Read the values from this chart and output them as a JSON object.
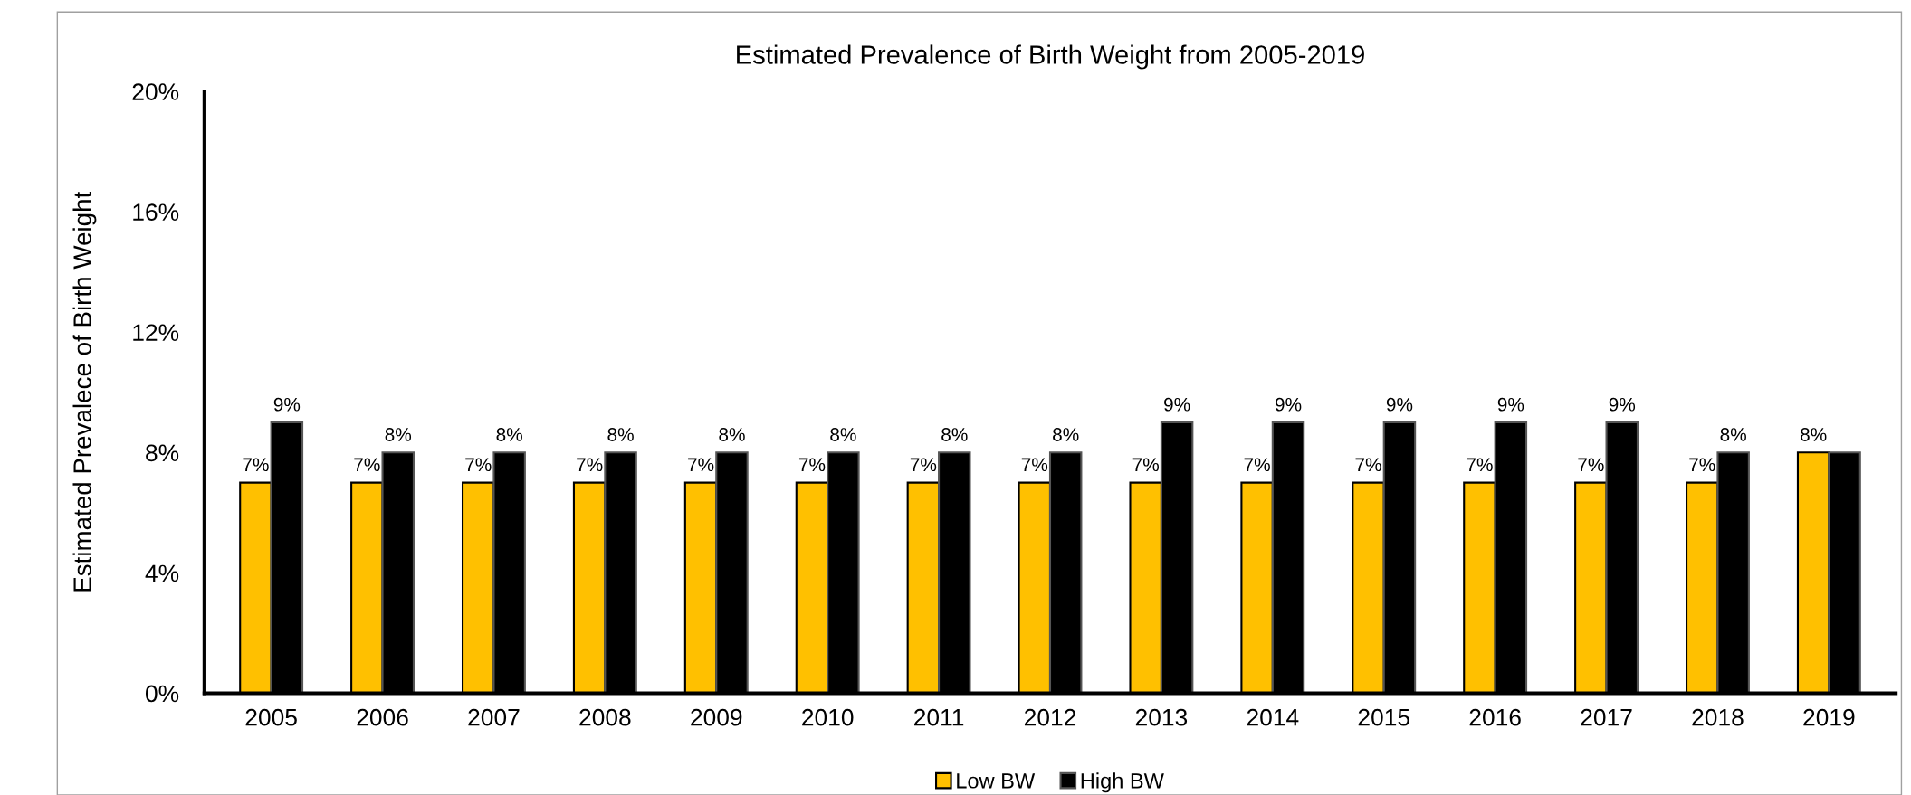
{
  "chart_data": {
    "type": "bar",
    "title": "Estimated Prevalence of Birth Weight from 2005-2019",
    "ylabel": "Estimated Prevalece of Birth Weight",
    "categories": [
      "2005",
      "2006",
      "2007",
      "2008",
      "2009",
      "2010",
      "2011",
      "2012",
      "2013",
      "2014",
      "2015",
      "2016",
      "2017",
      "2018",
      "2019"
    ],
    "series": [
      {
        "name": "Low BW",
        "color": "#ffc000",
        "values": [
          7,
          7,
          7,
          7,
          7,
          7,
          7,
          7,
          7,
          7,
          7,
          7,
          7,
          7,
          8
        ],
        "value_labels": [
          "7%",
          "7%",
          "7%",
          "7%",
          "7%",
          "7%",
          "7%",
          "7%",
          "7%",
          "7%",
          "7%",
          "7%",
          "7%",
          "7%",
          "8%"
        ]
      },
      {
        "name": "High BW",
        "color": "#000000",
        "values": [
          9,
          8,
          8,
          8,
          8,
          8,
          8,
          8,
          9,
          9,
          9,
          9,
          9,
          8,
          8
        ],
        "value_labels": [
          "9%",
          "8%",
          "8%",
          "8%",
          "8%",
          "8%",
          "8%",
          "8%",
          "9%",
          "9%",
          "9%",
          "9%",
          "9%",
          "8%",
          null
        ]
      }
    ],
    "ylim": [
      0,
      20
    ],
    "yticks": [
      {
        "value": 0,
        "label": "0%"
      },
      {
        "value": 4,
        "label": "4%"
      },
      {
        "value": 8,
        "label": "8%"
      },
      {
        "value": 12,
        "label": "12%"
      },
      {
        "value": 16,
        "label": "16%"
      },
      {
        "value": 20,
        "label": "20%"
      }
    ],
    "grid": false,
    "legend": "bottom"
  }
}
